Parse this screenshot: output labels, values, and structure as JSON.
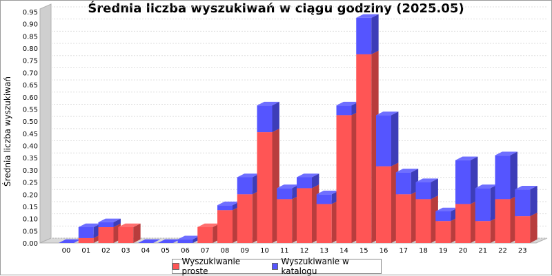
{
  "chart_data": {
    "type": "bar",
    "stacked": true,
    "three_d": true,
    "title": "Średnia liczba wyszukiwań w ciągu godziny (2025.05)",
    "ylabel": "Średnia liczba wyszukiwań",
    "xlabel": "",
    "ylim": [
      0,
      0.95
    ],
    "yticks": [
      "0.00",
      "0.05",
      "0.10",
      "0.15",
      "0.20",
      "0.25",
      "0.30",
      "0.35",
      "0.40",
      "0.45",
      "0.50",
      "0.55",
      "0.60",
      "0.65",
      "0.70",
      "0.75",
      "0.80",
      "0.85",
      "0.90",
      "0.95"
    ],
    "grid": true,
    "legend_position": "bottom",
    "categories": [
      "00",
      "01",
      "02",
      "03",
      "04",
      "05",
      "06",
      "07",
      "08",
      "09",
      "10",
      "11",
      "12",
      "13",
      "14",
      "15",
      "16",
      "17",
      "18",
      "19",
      "20",
      "21",
      "22",
      "23"
    ],
    "series": [
      {
        "name": "Wyszukiwanie proste",
        "color": "#ff5555",
        "values": [
          0,
          0.02,
          0.065,
          0.065,
          0,
          0,
          0,
          0.065,
          0.135,
          0.2,
          0.455,
          0.18,
          0.225,
          0.16,
          0.525,
          0.775,
          0.315,
          0.2,
          0.18,
          0.09,
          0.16,
          0.09,
          0.18,
          0.11
        ]
      },
      {
        "name": "Wyszukiwanie w katalogu",
        "color": "#5555ff",
        "values": [
          0,
          0.045,
          0.02,
          0,
          0,
          0,
          0.015,
          0,
          0.02,
          0.07,
          0.11,
          0.045,
          0.045,
          0.04,
          0.04,
          0.15,
          0.21,
          0.09,
          0.07,
          0.04,
          0.18,
          0.135,
          0.18,
          0.11
        ]
      }
    ]
  }
}
